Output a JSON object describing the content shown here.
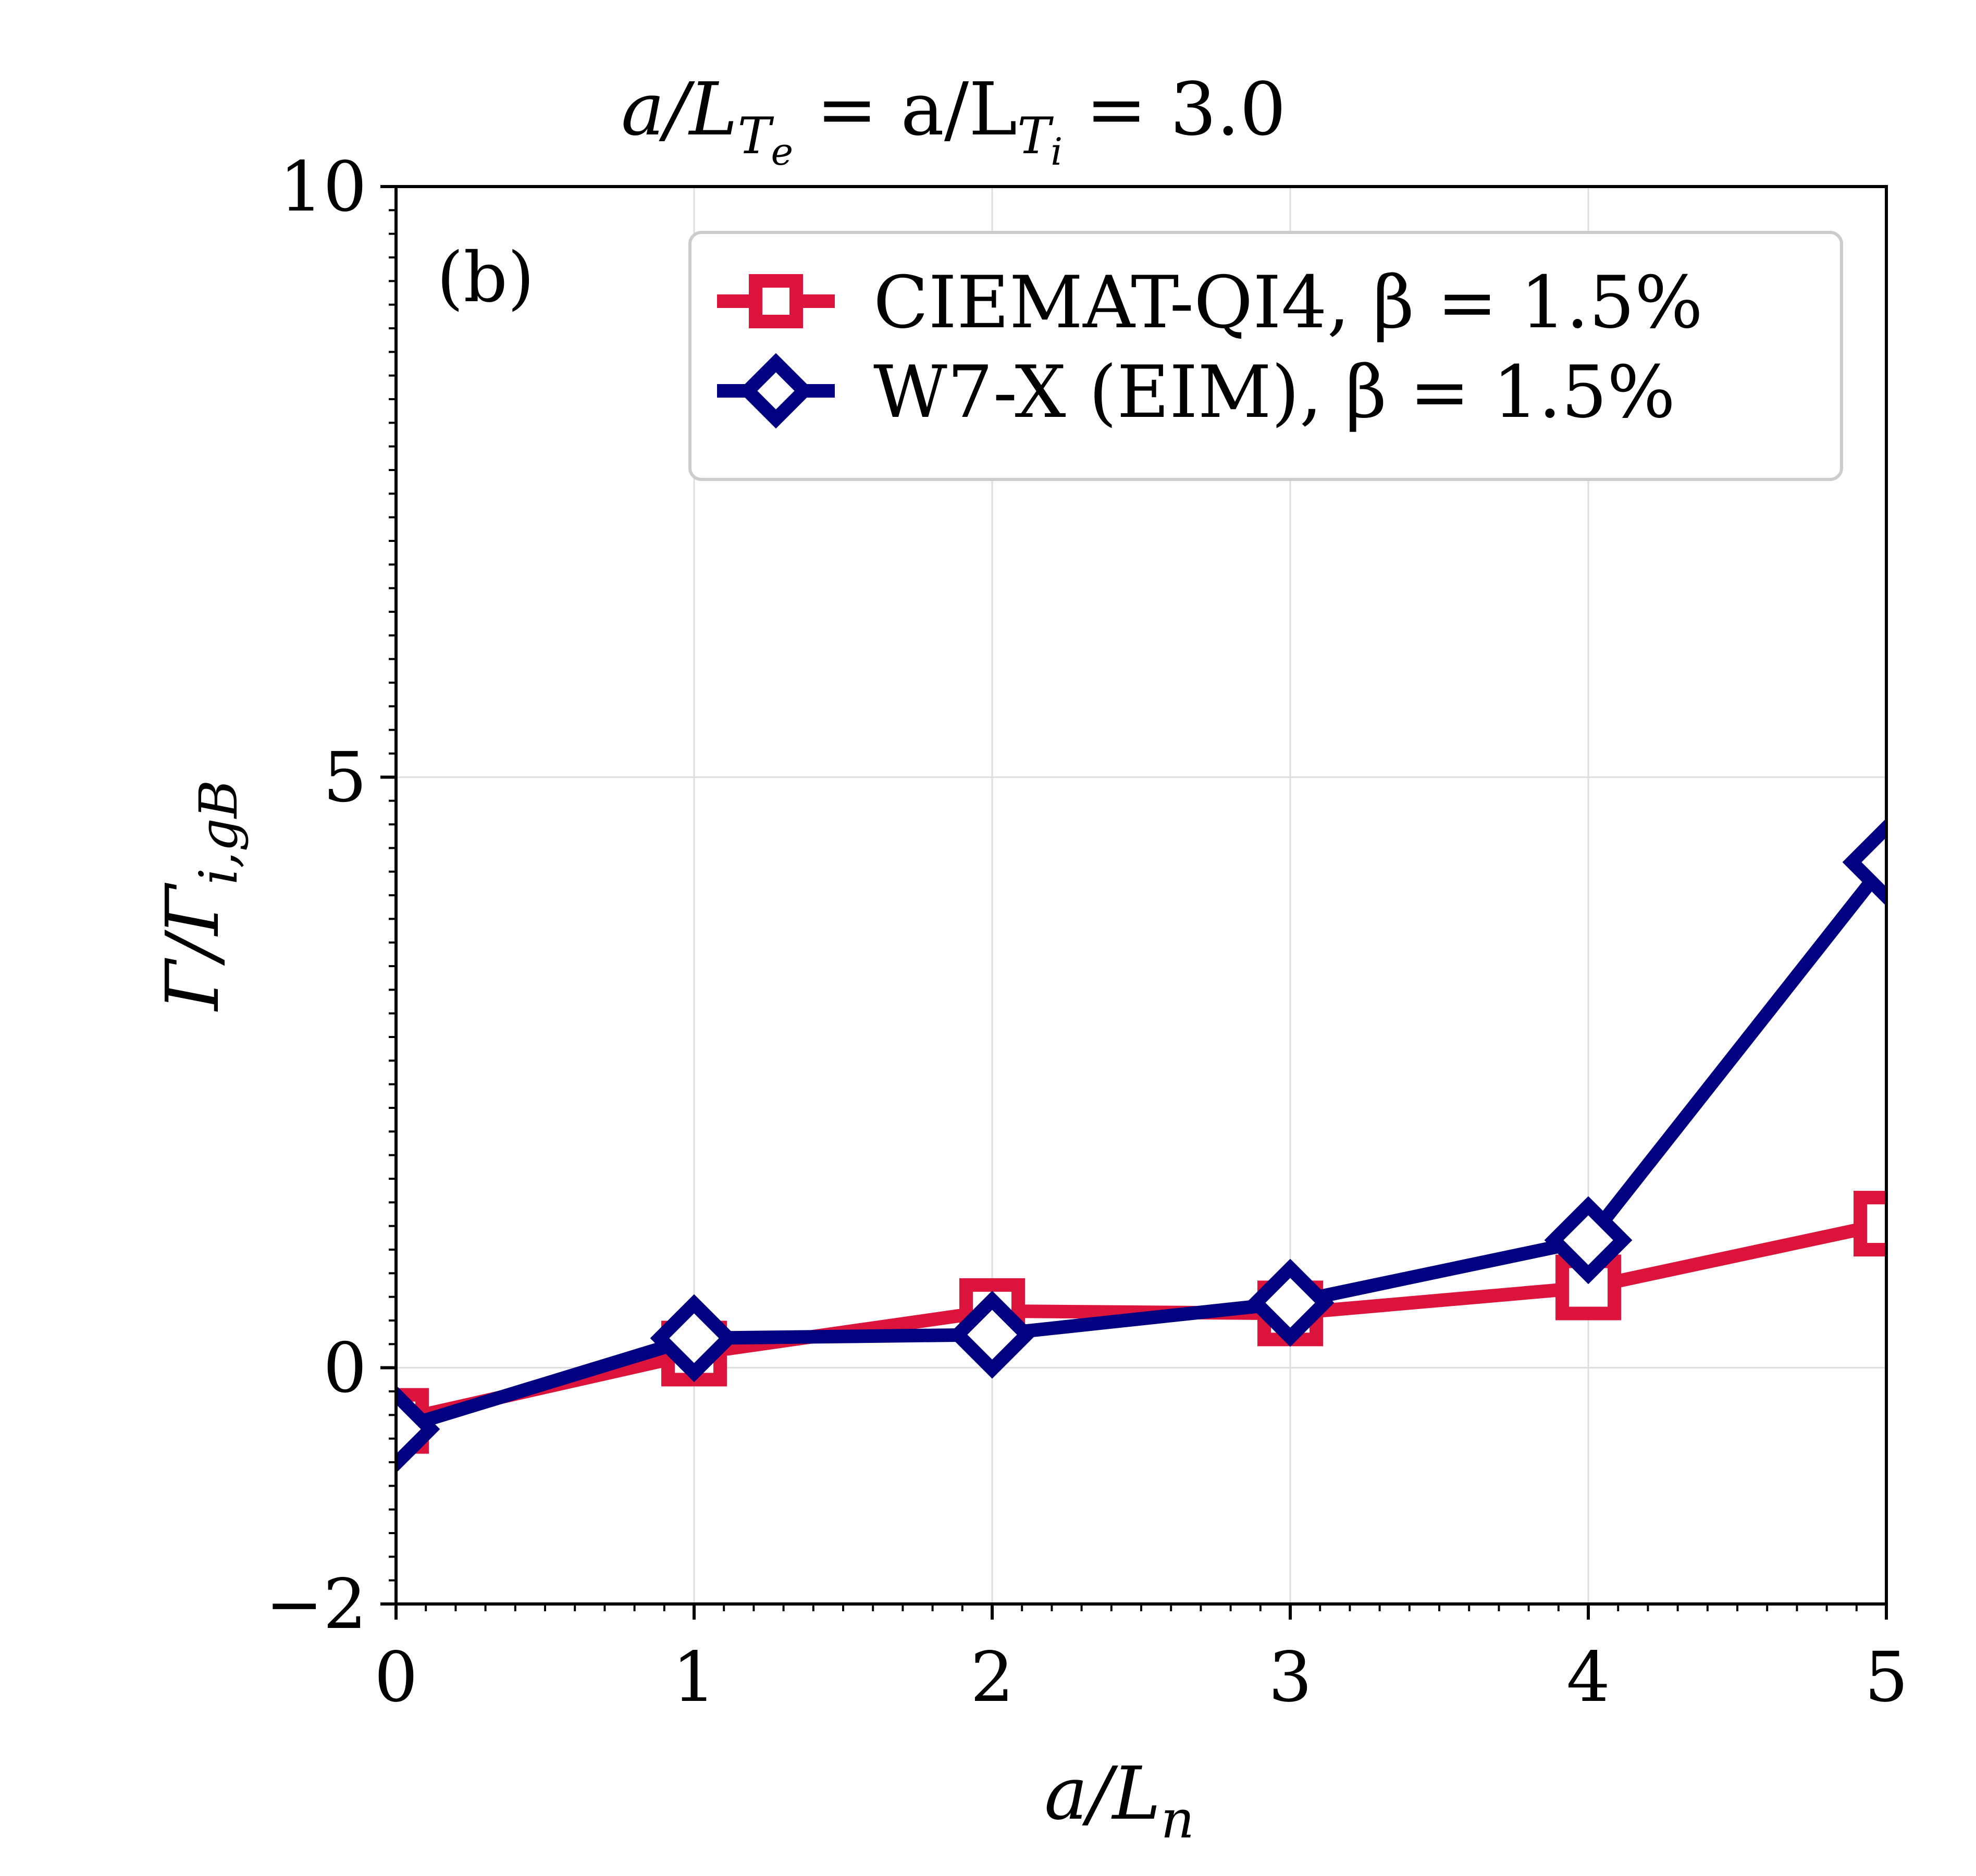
{
  "chart_data": {
    "type": "line",
    "title": "a/L_{T_e} = a/L_{T_i} = 3.0",
    "title_parts": {
      "main1": "a/L",
      "sub1": "T",
      "subsub1": "e",
      "mid": " = a/L",
      "sub2": "T",
      "subsub2": "i",
      "tail": " = 3.0"
    },
    "panel_label": "(b)",
    "xlabel": "a/L_n",
    "xlabel_parts": {
      "main": "a/L",
      "sub": "n"
    },
    "ylabel": "Γ/Γ_{i,gB}",
    "ylabel_parts": {
      "main": "Γ/Γ",
      "sub": "i,gB"
    },
    "xlim": [
      0,
      5
    ],
    "ylim": [
      -2,
      10
    ],
    "xticks": [
      0,
      1,
      2,
      3,
      4,
      5
    ],
    "xtick_labels": [
      "0",
      "1",
      "2",
      "3",
      "4",
      "5"
    ],
    "yticks": [
      -2,
      0,
      5,
      10
    ],
    "ytick_labels": [
      "−2",
      "0",
      "5",
      "10"
    ],
    "grid": true,
    "legend_position": "top-right",
    "series": [
      {
        "name": "CIEMAT-QI4, β = 1.5%",
        "color": "#dc143c",
        "marker": "square",
        "x": [
          0,
          1,
          2,
          3,
          4,
          5
        ],
        "values": [
          -0.45,
          0.12,
          0.48,
          0.46,
          0.68,
          1.22
        ]
      },
      {
        "name": "W7-X (EIM), β = 1.5%",
        "color": "#000080",
        "marker": "diamond",
        "x": [
          0,
          1,
          2,
          3,
          4,
          5
        ],
        "values": [
          -0.52,
          0.25,
          0.28,
          0.55,
          1.08,
          4.28
        ]
      }
    ]
  }
}
